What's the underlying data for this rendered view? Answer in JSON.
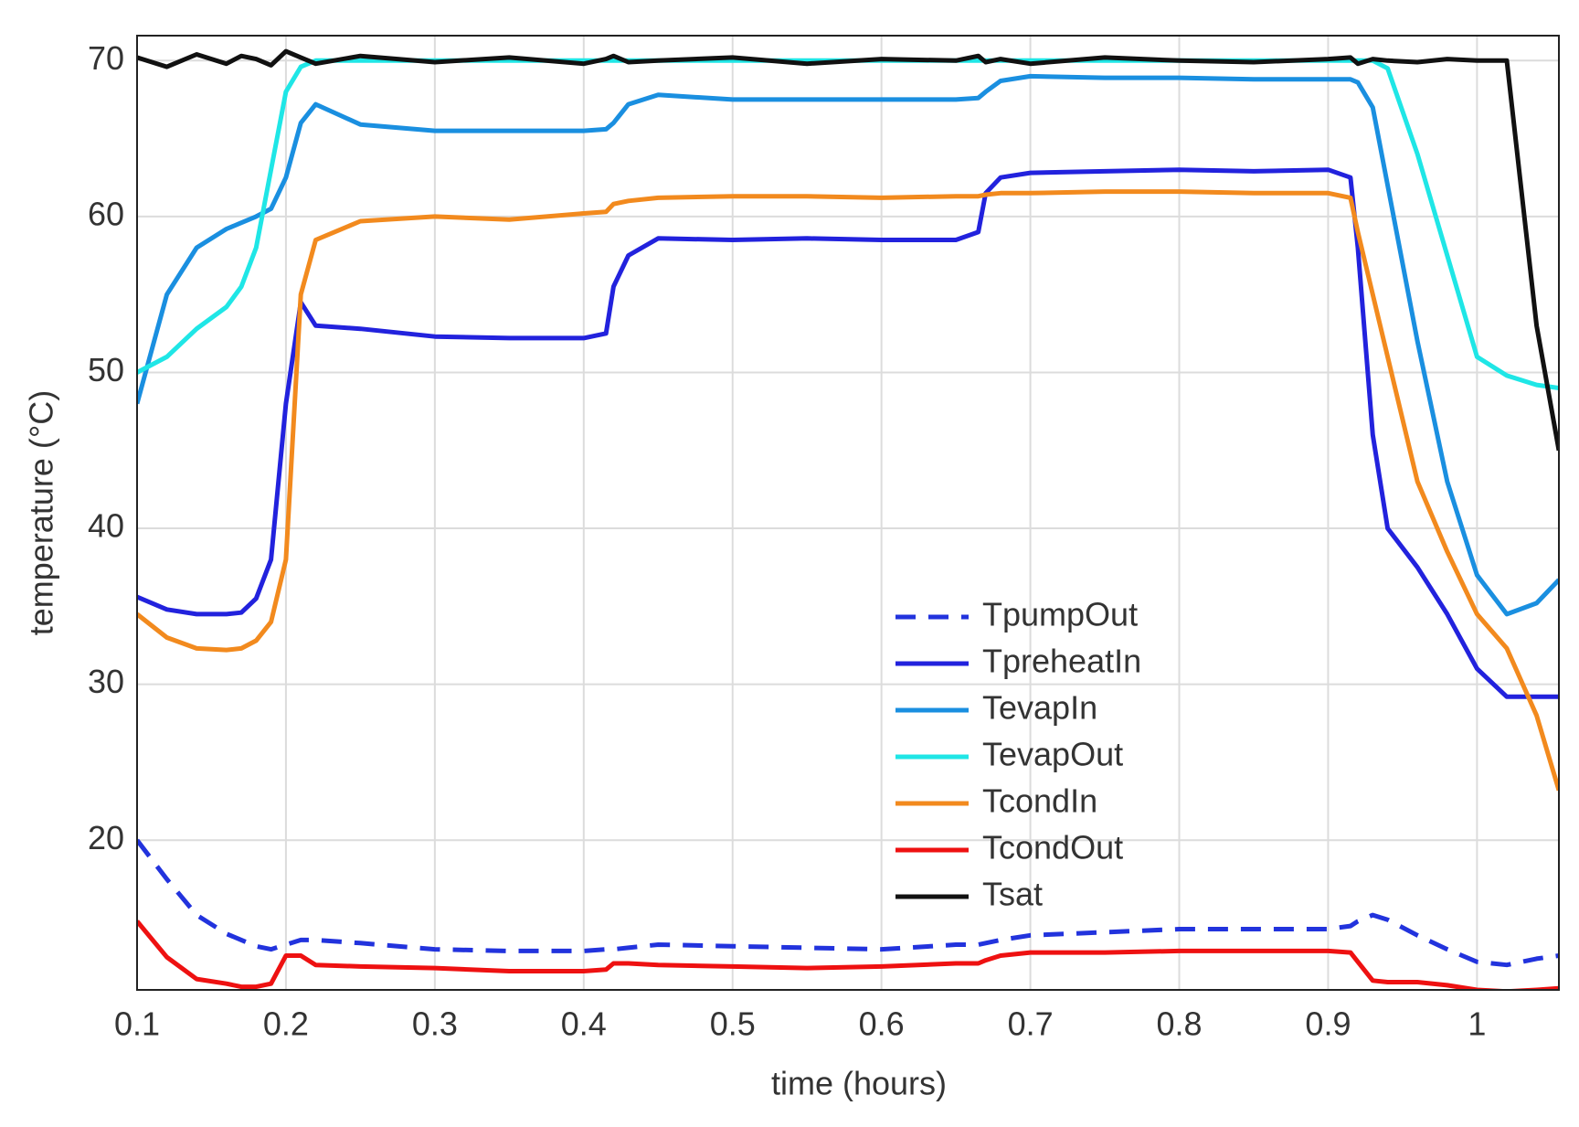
{
  "chart_data": {
    "type": "line",
    "x_label": "time (hours)",
    "y_label": "temperature (°C)",
    "x": [
      0.1,
      0.12,
      0.14,
      0.16,
      0.17,
      0.18,
      0.19,
      0.2,
      0.21,
      0.22,
      0.25,
      0.3,
      0.35,
      0.4,
      0.415,
      0.42,
      0.43,
      0.45,
      0.5,
      0.55,
      0.6,
      0.65,
      0.665,
      0.67,
      0.68,
      0.7,
      0.75,
      0.8,
      0.85,
      0.9,
      0.915,
      0.92,
      0.93,
      0.94,
      0.96,
      0.98,
      1.0,
      1.02,
      1.04,
      1.055
    ],
    "series": [
      {
        "name": "TpumpOut",
        "color": "#2233dd",
        "dashed": true,
        "values": [
          20,
          17.5,
          15.2,
          14,
          13.6,
          13.2,
          13,
          13.3,
          13.6,
          13.6,
          13.4,
          13,
          12.9,
          12.9,
          13,
          13,
          13.1,
          13.3,
          13.2,
          13.1,
          13,
          13.3,
          13.3,
          13.4,
          13.6,
          13.9,
          14.1,
          14.3,
          14.3,
          14.3,
          14.5,
          14.8,
          15.2,
          14.9,
          13.9,
          13,
          12.2,
          12,
          12.4,
          12.6
        ]
      },
      {
        "name": "TpreheatIn",
        "color": "#2222dd",
        "dashed": false,
        "values": [
          35.6,
          34.8,
          34.5,
          34.5,
          34.6,
          35.5,
          38,
          48,
          54.5,
          53,
          52.8,
          52.3,
          52.2,
          52.2,
          52.5,
          55.5,
          57.5,
          58.6,
          58.5,
          58.6,
          58.5,
          58.5,
          59,
          61.5,
          62.5,
          62.8,
          62.9,
          63,
          62.9,
          63,
          62.5,
          58,
          46,
          40,
          37.5,
          34.5,
          31,
          29.2,
          29.2,
          29.2
        ]
      },
      {
        "name": "TevapIn",
        "color": "#1a8fe0",
        "dashed": false,
        "values": [
          48,
          55,
          58,
          59.2,
          59.6,
          60,
          60.5,
          62.5,
          66,
          67.2,
          65.9,
          65.5,
          65.5,
          65.5,
          65.6,
          66,
          67.2,
          67.8,
          67.5,
          67.5,
          67.5,
          67.5,
          67.6,
          68,
          68.7,
          69,
          68.9,
          68.9,
          68.8,
          68.8,
          68.8,
          68.6,
          67,
          62,
          52,
          43,
          37,
          34.5,
          35.2,
          36.7
        ]
      },
      {
        "name": "TevapOut",
        "color": "#1fe6e6",
        "dashed": false,
        "values": [
          50,
          51,
          52.8,
          54.2,
          55.5,
          58,
          63,
          68,
          69.6,
          70,
          70,
          70,
          70,
          70,
          70,
          70,
          70,
          70,
          70,
          70,
          70,
          70,
          70,
          70,
          70,
          70,
          70,
          70,
          70,
          70,
          70,
          70,
          70,
          69.5,
          64,
          57.5,
          51,
          49.8,
          49.2,
          49
        ]
      },
      {
        "name": "TcondIn",
        "color": "#f28a1e",
        "dashed": false,
        "values": [
          34.5,
          33,
          32.3,
          32.2,
          32.3,
          32.8,
          34,
          38,
          55,
          58.5,
          59.7,
          60,
          59.8,
          60.2,
          60.3,
          60.8,
          61,
          61.2,
          61.3,
          61.3,
          61.2,
          61.3,
          61.3,
          61.4,
          61.5,
          61.5,
          61.6,
          61.6,
          61.5,
          61.5,
          61.2,
          59,
          55,
          51,
          43,
          38.5,
          34.5,
          32.3,
          28,
          23.2
        ]
      },
      {
        "name": "TcondOut",
        "color": "#ee1111",
        "dashed": false,
        "values": [
          14.8,
          12.5,
          11.1,
          10.8,
          10.6,
          10.6,
          10.8,
          12.6,
          12.6,
          12,
          11.9,
          11.8,
          11.6,
          11.6,
          11.7,
          12.1,
          12.1,
          12,
          11.9,
          11.8,
          11.9,
          12.1,
          12.1,
          12.3,
          12.6,
          12.8,
          12.8,
          12.9,
          12.9,
          12.9,
          12.8,
          12.2,
          11,
          10.9,
          10.9,
          10.7,
          10.4,
          10.3,
          10.4,
          10.5
        ]
      },
      {
        "name": "Tsat",
        "color": "#111111",
        "dashed": false,
        "values": [
          70.2,
          69.6,
          70.4,
          69.8,
          70.3,
          70.1,
          69.7,
          70.6,
          70.2,
          69.8,
          70.3,
          69.9,
          70.2,
          69.8,
          70.1,
          70.3,
          69.9,
          70,
          70.2,
          69.8,
          70.1,
          70,
          70.3,
          69.9,
          70.1,
          69.8,
          70.2,
          70,
          69.9,
          70.1,
          70.2,
          69.8,
          70.1,
          70,
          69.9,
          70.1,
          70,
          70,
          53,
          45
        ]
      }
    ],
    "xlim": [
      0.1,
      1.055
    ],
    "ylim": [
      10.4,
      71.6
    ],
    "xticks": [
      0.1,
      0.2,
      0.3,
      0.4,
      0.5,
      0.6,
      0.7,
      0.8,
      0.9,
      1
    ],
    "yticks": [
      20,
      30,
      40,
      50,
      60,
      70
    ],
    "grid": true,
    "legend": "lower right"
  }
}
